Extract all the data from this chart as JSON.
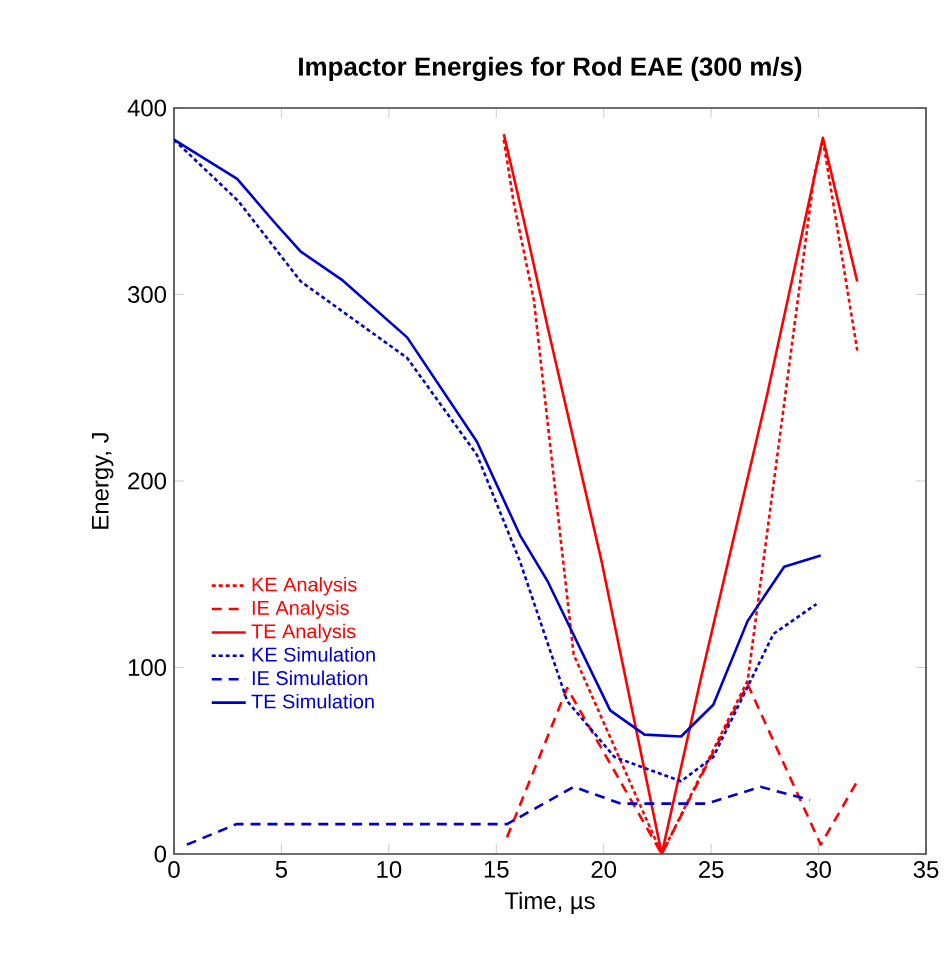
{
  "chart_data": {
    "type": "line",
    "title": "Impactor Energies for Rod EAE (300 m/s)",
    "xlabel": "Time, µs",
    "ylabel": "Energy, J",
    "xlim": [
      0,
      35
    ],
    "ylim": [
      0,
      400
    ],
    "xticks": [
      0,
      5,
      10,
      15,
      20,
      25,
      30,
      35
    ],
    "yticks": [
      0,
      100,
      200,
      300,
      400
    ],
    "grid": false,
    "legend": "left",
    "series": [
      {
        "name": "KE Analysis",
        "color": "#ff0000",
        "line_style": "dotted",
        "x": [
          15.35,
          15.8,
          16.75,
          18.6,
          22.7,
          26.7,
          29.8,
          30.2,
          31.8
        ],
        "values": [
          383,
          350,
          297,
          107,
          0,
          93,
          364,
          383,
          270
        ]
      },
      {
        "name": "IE Analysis",
        "color": "#ff0000",
        "line_style": "dashed",
        "x": [
          15.5,
          18.3,
          22.7,
          26.7,
          30.1,
          31.8
        ],
        "values": [
          9,
          89,
          0,
          91,
          5,
          39
        ]
      },
      {
        "name": "TE Analysis",
        "color": "#ff0000",
        "line_style": "solid",
        "x": [
          15.35,
          16.3,
          17.4,
          19.9,
          22.7,
          24.5,
          27.6,
          30.2,
          31.8
        ],
        "values": [
          386,
          339,
          282,
          157,
          0,
          93,
          246,
          384,
          307
        ]
      },
      {
        "name": "KE Simulation",
        "color": "#0000cc",
        "line_style": "dotted",
        "x": [
          0,
          3,
          5.9,
          10.85,
          14.1,
          16.1,
          18.3,
          20.5,
          23.6,
          25.1,
          27.9,
          29.9
        ],
        "values": [
          383,
          350,
          307,
          266,
          214,
          157,
          82,
          52,
          39,
          52,
          118,
          134
        ]
      },
      {
        "name": "IE Simulation",
        "color": "#0000cc",
        "line_style": "dashed",
        "x": [
          0.6,
          2.9,
          15.5,
          18.6,
          20.8,
          24.8,
          27.3,
          29.6
        ],
        "values": [
          5,
          16,
          16,
          36,
          27,
          27,
          36,
          29
        ]
      },
      {
        "name": "TE Simulation",
        "color": "#0000cc",
        "line_style": "solid",
        "x": [
          0,
          2.94,
          4.65,
          5.9,
          7.8,
          10.85,
          14.1,
          16.1,
          17.4,
          20.3,
          21.9,
          23.6,
          25.1,
          26.7,
          28.4,
          30.1
        ],
        "values": [
          383,
          362,
          339,
          323,
          308,
          277,
          221,
          171,
          146,
          77,
          64,
          63,
          80,
          125,
          154,
          160
        ]
      }
    ]
  }
}
